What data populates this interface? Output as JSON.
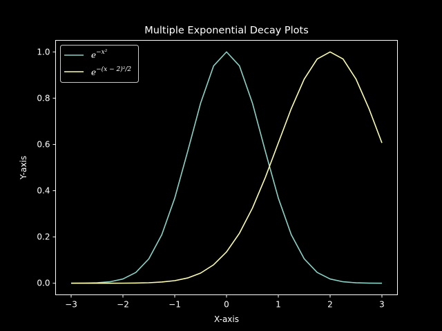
{
  "colors": {
    "background": "#000000",
    "foreground": "#ffffff",
    "series1": "#8dd3c7",
    "series2": "#feffb3"
  },
  "chart_data": {
    "type": "line",
    "title": "Multiple Exponential Decay Plots",
    "xlabel": "X-axis",
    "ylabel": "Y-axis",
    "xlim": [
      -3.3,
      3.3
    ],
    "ylim": [
      -0.05,
      1.05
    ],
    "xticks": [
      -3,
      -2,
      -1,
      0,
      1,
      2,
      3
    ],
    "xtick_labels": [
      "−3",
      "−2",
      "−1",
      "0",
      "1",
      "2",
      "3"
    ],
    "yticks": [
      0.0,
      0.2,
      0.4,
      0.6,
      0.8,
      1.0
    ],
    "ytick_labels": [
      "0.0",
      "0.2",
      "0.4",
      "0.6",
      "0.8",
      "1.0"
    ],
    "grid": false,
    "legend_position": "upper-left",
    "x": [
      -3.0,
      -2.75,
      -2.5,
      -2.25,
      -2.0,
      -1.75,
      -1.5,
      -1.25,
      -1.0,
      -0.75,
      -0.5,
      -0.25,
      0.0,
      0.25,
      0.5,
      0.75,
      1.0,
      1.25,
      1.5,
      1.75,
      2.0,
      2.25,
      2.5,
      2.75,
      3.0
    ],
    "series": [
      {
        "legend_base": "e",
        "legend_exp": "−x²",
        "values": [
          0.0001,
          0.0005,
          0.0019,
          0.0063,
          0.0183,
          0.0468,
          0.1054,
          0.2096,
          0.3679,
          0.5698,
          0.7788,
          0.9394,
          1.0,
          0.9394,
          0.7788,
          0.5698,
          0.3679,
          0.2096,
          0.1054,
          0.0468,
          0.0183,
          0.0063,
          0.0019,
          0.0005,
          0.0001
        ]
      },
      {
        "legend_base": "e",
        "legend_exp": "−(x − 2)²/2",
        "values": [
          0.0,
          0.0,
          0.0,
          0.0,
          0.0003,
          0.0009,
          0.0022,
          0.0054,
          0.0111,
          0.0228,
          0.0439,
          0.0797,
          0.1353,
          0.2163,
          0.3247,
          0.4578,
          0.6065,
          0.7548,
          0.8825,
          0.9692,
          1.0,
          0.9692,
          0.8825,
          0.7548,
          0.6065
        ]
      }
    ]
  }
}
